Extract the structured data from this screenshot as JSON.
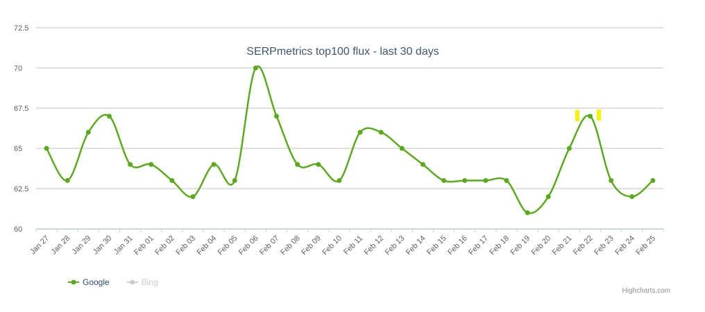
{
  "chart_data": {
    "type": "line",
    "title": "SERPmetrics top100 flux - last 30 days",
    "categories": [
      "Jan 27",
      "Jan 28",
      "Jan 29",
      "Jan 30",
      "Jan 31",
      "Feb 01",
      "Feb 02",
      "Feb 03",
      "Feb 04",
      "Feb 05",
      "Feb 06",
      "Feb 07",
      "Feb 08",
      "Feb 09",
      "Feb 10",
      "Feb 11",
      "Feb 12",
      "Feb 13",
      "Feb 14",
      "Feb 15",
      "Feb 16",
      "Feb 17",
      "Feb 18",
      "Feb 19",
      "Feb 20",
      "Feb 21",
      "Feb 22",
      "Feb 23",
      "Feb 24",
      "Feb 25"
    ],
    "series": [
      {
        "name": "Google",
        "color": "#5aab1c",
        "values": [
          65,
          63,
          66,
          67,
          64,
          64,
          63,
          62,
          64,
          63,
          70,
          67,
          64,
          64,
          63,
          66,
          66,
          65,
          64,
          63,
          63,
          63,
          63,
          61,
          62,
          65,
          67,
          63,
          62,
          63
        ]
      },
      {
        "name": "Bing",
        "color": "#cccccc",
        "visible": false
      }
    ],
    "ylim": [
      60,
      72.5
    ],
    "yticks": [
      60,
      62.5,
      65,
      67.5,
      70,
      72.5
    ],
    "grid": true,
    "smooth": true,
    "legend": "bottom-left",
    "credits": "Highcharts.com"
  }
}
